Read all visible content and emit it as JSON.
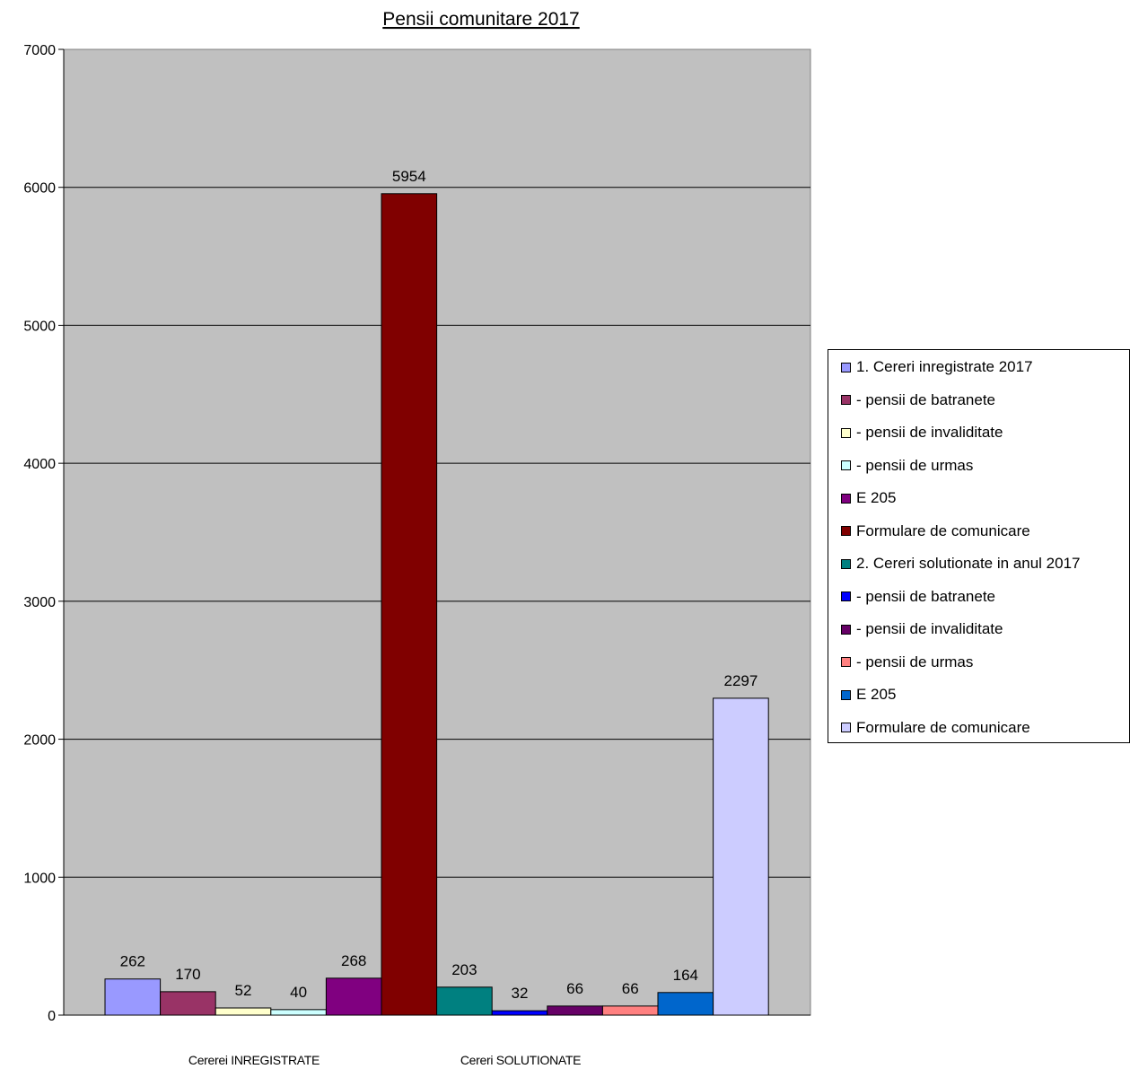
{
  "chart_data": {
    "type": "bar",
    "title": "Pensii comunitare 2017",
    "xlabel": "",
    "ylabel": "",
    "ylim": [
      0,
      7000
    ],
    "yticks": [
      0,
      1000,
      2000,
      3000,
      4000,
      5000,
      6000,
      7000
    ],
    "grid": true,
    "legend_position": "right",
    "plot_background": "#C0C0C0",
    "group_labels": [
      "Cererei INREGISTRATE",
      "Cereri SOLUTIONATE"
    ],
    "series": [
      {
        "name": "1. Cereri inregistrate 2017",
        "value": 262,
        "color": "#9999FF"
      },
      {
        "name": "- pensii de batranete",
        "value": 170,
        "color": "#993366"
      },
      {
        "name": "- pensii de invaliditate",
        "value": 52,
        "color": "#FFFFCC"
      },
      {
        "name": "- pensii de urmas",
        "value": 40,
        "color": "#CCFFFF"
      },
      {
        "name": "E 205",
        "value": 268,
        "color": "#800080"
      },
      {
        "name": "Formulare de comunicare",
        "value": 5954,
        "color": "#800000"
      },
      {
        "name": "2. Cereri solutionate in anul 2017",
        "value": 203,
        "color": "#008080"
      },
      {
        "name": "- pensii de batranete",
        "value": 32,
        "color": "#0000FF"
      },
      {
        "name": "- pensii de invaliditate",
        "value": 66,
        "color": "#660066"
      },
      {
        "name": "- pensii de urmas",
        "value": 66,
        "color": "#FF8080"
      },
      {
        "name": "E 205",
        "value": 164,
        "color": "#0066CC"
      },
      {
        "name": "Formulare de comunicare",
        "value": 2297,
        "color": "#CCCCFF"
      }
    ]
  }
}
